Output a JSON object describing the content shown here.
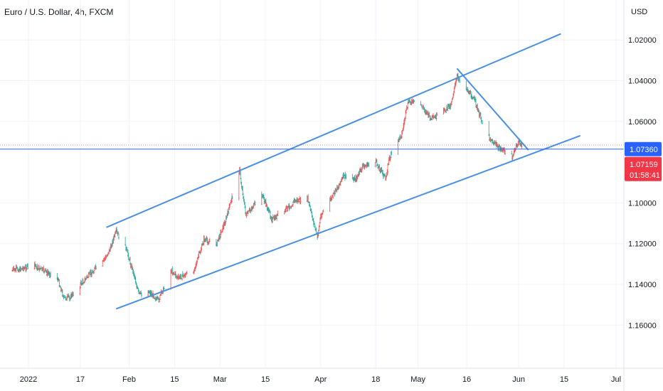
{
  "header": {
    "title": "Euro / U.S. Dollar, 4h, FXCM"
  },
  "chart_data": {
    "type": "candlestick",
    "currency_label": "USD",
    "y_ticks": [
      {
        "value": 1.16,
        "label": "1.16000"
      },
      {
        "value": 1.14,
        "label": "1.14000"
      },
      {
        "value": 1.12,
        "label": "1.12000"
      },
      {
        "value": 1.1,
        "label": "1.10000"
      },
      {
        "value": 1.06,
        "label": "1.06000"
      },
      {
        "value": 1.04,
        "label": "1.04000"
      },
      {
        "value": 1.02,
        "label": "1.02000"
      }
    ],
    "x_ticks": [
      {
        "date": "2022-01-01",
        "label": "2022"
      },
      {
        "date": "2022-01-17",
        "label": "17"
      },
      {
        "date": "2022-02-01",
        "label": "Feb"
      },
      {
        "date": "2022-02-15",
        "label": "15"
      },
      {
        "date": "2022-03-01",
        "label": "Mar"
      },
      {
        "date": "2022-03-15",
        "label": "15"
      },
      {
        "date": "2022-04-01",
        "label": "Apr"
      },
      {
        "date": "2022-04-18",
        "label": "18"
      },
      {
        "date": "2022-05-01",
        "label": "May"
      },
      {
        "date": "2022-05-16",
        "label": "16"
      },
      {
        "date": "2022-06-01",
        "label": "Jun"
      },
      {
        "date": "2022-06-15",
        "label": "15"
      },
      {
        "date": "2022-07-01",
        "label": "Jul"
      }
    ],
    "price_path": [
      [
        "2021-12-27",
        1.133
      ],
      [
        "2022-01-03",
        1.131
      ],
      [
        "2022-01-10",
        1.137
      ],
      [
        "2022-01-12",
        1.147
      ],
      [
        "2022-01-14",
        1.146
      ],
      [
        "2022-01-17",
        1.14
      ],
      [
        "2022-01-21",
        1.133
      ],
      [
        "2022-01-24",
        1.129
      ],
      [
        "2022-01-26",
        1.123
      ],
      [
        "2022-01-28",
        1.114
      ],
      [
        "2022-01-31",
        1.122
      ],
      [
        "2022-02-03",
        1.138
      ],
      [
        "2022-02-04",
        1.145
      ],
      [
        "2022-02-07",
        1.143
      ],
      [
        "2022-02-10",
        1.148
      ],
      [
        "2022-02-14",
        1.133
      ],
      [
        "2022-02-16",
        1.137
      ],
      [
        "2022-02-21",
        1.133
      ],
      [
        "2022-02-24",
        1.118
      ],
      [
        "2022-02-28",
        1.12
      ],
      [
        "2022-03-03",
        1.107
      ],
      [
        "2022-03-07",
        1.084
      ],
      [
        "2022-03-09",
        1.106
      ],
      [
        "2022-03-14",
        1.096
      ],
      [
        "2022-03-17",
        1.108
      ],
      [
        "2022-03-21",
        1.104
      ],
      [
        "2022-03-24",
        1.099
      ],
      [
        "2022-03-28",
        1.098
      ],
      [
        "2022-03-31",
        1.117
      ],
      [
        "2022-04-01",
        1.106
      ],
      [
        "2022-04-05",
        1.096
      ],
      [
        "2022-04-08",
        1.087
      ],
      [
        "2022-04-12",
        1.088
      ],
      [
        "2022-04-14",
        1.082
      ],
      [
        "2022-04-18",
        1.08
      ],
      [
        "2022-04-21",
        1.088
      ],
      [
        "2022-04-22",
        1.079
      ],
      [
        "2022-04-26",
        1.066
      ],
      [
        "2022-04-28",
        1.05
      ],
      [
        "2022-05-02",
        1.052
      ],
      [
        "2022-05-05",
        1.059
      ],
      [
        "2022-05-09",
        1.055
      ],
      [
        "2022-05-11",
        1.052
      ],
      [
        "2022-05-13",
        1.038
      ],
      [
        "2022-05-16",
        1.044
      ],
      [
        "2022-05-18",
        1.048
      ],
      [
        "2022-05-20",
        1.057
      ],
      [
        "2022-05-23",
        1.068
      ],
      [
        "2022-05-26",
        1.073
      ],
      [
        "2022-05-30",
        1.077
      ],
      [
        "2022-06-01",
        1.07
      ],
      [
        "2022-06-02",
        1.0716
      ]
    ],
    "trendlines": [
      {
        "name": "channel-upper",
        "from": [
          "2022-01-28",
          1.152
        ],
        "to": [
          "2022-06-20",
          1.067
        ]
      },
      {
        "name": "channel-lower",
        "from": [
          "2022-01-25",
          1.112
        ],
        "to": [
          "2022-06-14",
          1.017
        ]
      },
      {
        "name": "rising-support",
        "from": [
          "2022-05-13",
          1.034
        ],
        "to": [
          "2022-06-04",
          1.074
        ]
      }
    ],
    "horizontal_line": {
      "value": 1.0736,
      "label": "1.07360",
      "color": "#2962ff"
    },
    "last_price": {
      "value": 1.07159,
      "label": "1.07159",
      "countdown": "01:58:41",
      "color": "#f23645"
    },
    "colors": {
      "up": "#26a69a",
      "down": "#ef5350",
      "trendline": "#4a90e2",
      "grid": "#f0f3fa"
    }
  }
}
